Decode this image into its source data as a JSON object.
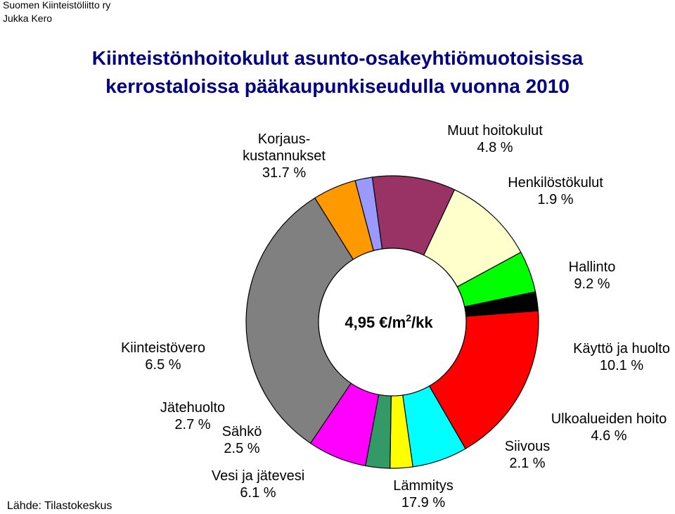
{
  "header": {
    "organization": "Suomen Kiinteistöliitto ry",
    "author": "Jukka Kero",
    "title_line1": "Kiinteistönhoitokulut asunto-osakeyhtiömuotoisissa",
    "title_line2": "kerrostaloissa pääkaupunkiseudulla vuonna 2010"
  },
  "source": "Lähde: Tilastokeskus",
  "chart_data": {
    "type": "pie",
    "donut": true,
    "center_label": {
      "value": "4,95 ",
      "unit": "€/m",
      "sup": "2",
      "suffix": "/kk"
    },
    "series": [
      {
        "name": "Korjaus-kustannukset",
        "label_lines": [
          "Korjaus-",
          "kustannukset",
          "31.7 %"
        ],
        "value": 31.7,
        "color": "#808080"
      },
      {
        "name": "Muut hoitokulut",
        "label_lines": [
          "Muut hoitokulut",
          "4.8 %"
        ],
        "value": 4.8,
        "color": "#FF9900"
      },
      {
        "name": "Henkilöstökulut",
        "label_lines": [
          "Henkilöstökulut",
          "1.9 %"
        ],
        "value": 1.9,
        "color": "#9999FF"
      },
      {
        "name": "Hallinto",
        "label_lines": [
          "Hallinto",
          "9.2 %"
        ],
        "value": 9.2,
        "color": "#993366"
      },
      {
        "name": "Käyttö ja huolto",
        "label_lines": [
          "Käyttö ja huolto",
          "10.1 %"
        ],
        "value": 10.1,
        "color": "#FFFFCC"
      },
      {
        "name": "Ulkoalueiden hoito",
        "label_lines": [
          "Ulkoalueiden hoito",
          "4.6 %"
        ],
        "value": 4.6,
        "color": "#00FF00"
      },
      {
        "name": "Siivous",
        "label_lines": [
          "Siivous",
          "2.1 %"
        ],
        "value": 2.1,
        "color": "#000000"
      },
      {
        "name": "Lämmitys",
        "label_lines": [
          "Lämmitys",
          "17.9 %"
        ],
        "value": 17.9,
        "color": "#FF0000"
      },
      {
        "name": "Vesi ja jätevesi",
        "label_lines": [
          "Vesi ja jätevesi",
          "6.1 %"
        ],
        "value": 6.1,
        "color": "#00FFFF"
      },
      {
        "name": "Sähkö",
        "label_lines": [
          "Sähkö",
          "2.5 %"
        ],
        "value": 2.5,
        "color": "#FFFF00"
      },
      {
        "name": "Jätehuolto",
        "label_lines": [
          "Jätehuolto",
          "2.7 %"
        ],
        "value": 2.7,
        "color": "#339966"
      },
      {
        "name": "Kiinteistövero",
        "label_lines": [
          "Kiinteistövero",
          "6.5 %"
        ],
        "value": 6.5,
        "color": "#FF00FF"
      }
    ]
  }
}
